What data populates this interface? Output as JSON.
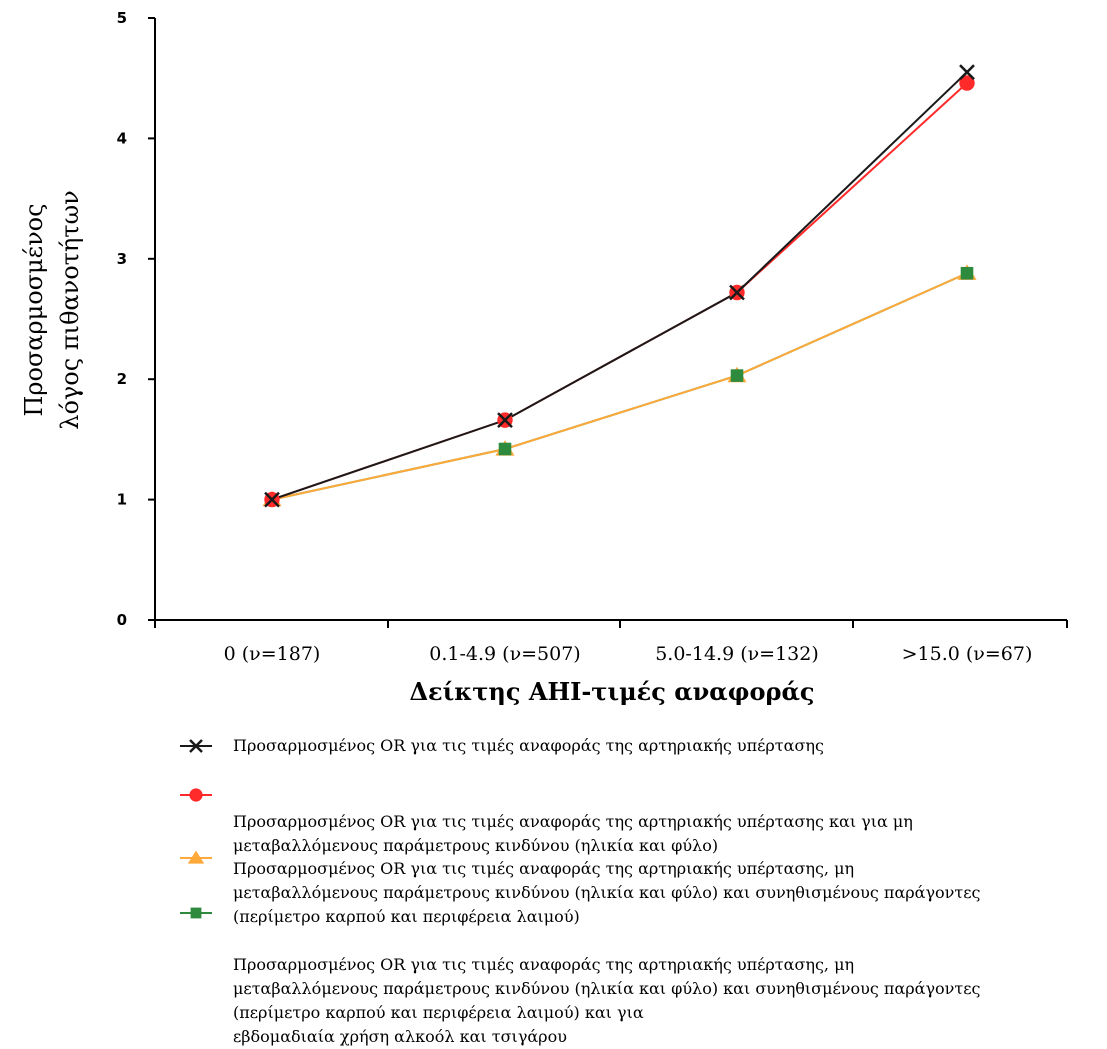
{
  "chart_data": {
    "type": "line",
    "categories": [
      "0 (ν=187)",
      "0.1-4.9 (ν=507)",
      "5.0-14.9 (ν=132)",
      ">15.0  (ν=67)"
    ],
    "ylabel_lines": [
      "Προσαρμοσμένος",
      "λόγος πιθανοτήτων"
    ],
    "xlabel": "Δείκτης AHI-τιμές αναφοράς",
    "ylim": [
      0,
      5
    ],
    "yticks": [
      "0",
      "1",
      "2",
      "3",
      "4",
      "5"
    ],
    "grid": false,
    "legend_position": "bottom",
    "series": [
      {
        "legend_lines": [
          "Προσαρμοσμένος  OR για τις τιμές αναφοράς της αρτηριακής υπέρτασης"
        ],
        "values": [
          1.0,
          1.66,
          2.72,
          4.55
        ],
        "color": "#1a1a1a",
        "marker": "x-cross"
      },
      {
        "legend_lines": [
          "Προσαρμοσμένος OR για τις τιμές αναφοράς της αρτηριακής υπέρτασης και για μη",
          "μεταβαλλόμενους παράμετρους κινδύνου (ηλικία και φύλο)"
        ],
        "values": [
          1.0,
          1.66,
          2.72,
          4.46
        ],
        "color": "#ff2a2a",
        "marker": "circle"
      },
      {
        "legend_lines": [
          "Προσαρμοσμένος  OR για τις τιμές αναφοράς της αρτηριακής υπέρτασης, μη",
          "μεταβαλλόμενους παράμετρους κινδύνου (ηλικία και φύλο) και συνηθισμένους παράγοντες",
          "(περίμετρο καρπού και περιφέρεια λαιμού)"
        ],
        "values": [
          1.0,
          1.42,
          2.03,
          2.88
        ],
        "color": "#ffa93a",
        "marker": "triangle"
      },
      {
        "legend_lines": [
          "Προσαρμοσμένος  OR για τις τιμές αναφοράς της αρτηριακής υπέρτασης, μη",
          "μεταβαλλόμενους παράμετρους κινδύνου (ηλικία και φύλο) και συνηθισμένους παράγοντες",
          "(περίμετρο καρπού και περιφέρεια λαιμού) και για",
          "εβδομαδιαία χρήση αλκοόλ και τσιγάρου"
        ],
        "values": [
          1.0,
          1.42,
          2.03,
          2.88
        ],
        "color": "#2e8b3e",
        "marker": "square"
      }
    ]
  }
}
